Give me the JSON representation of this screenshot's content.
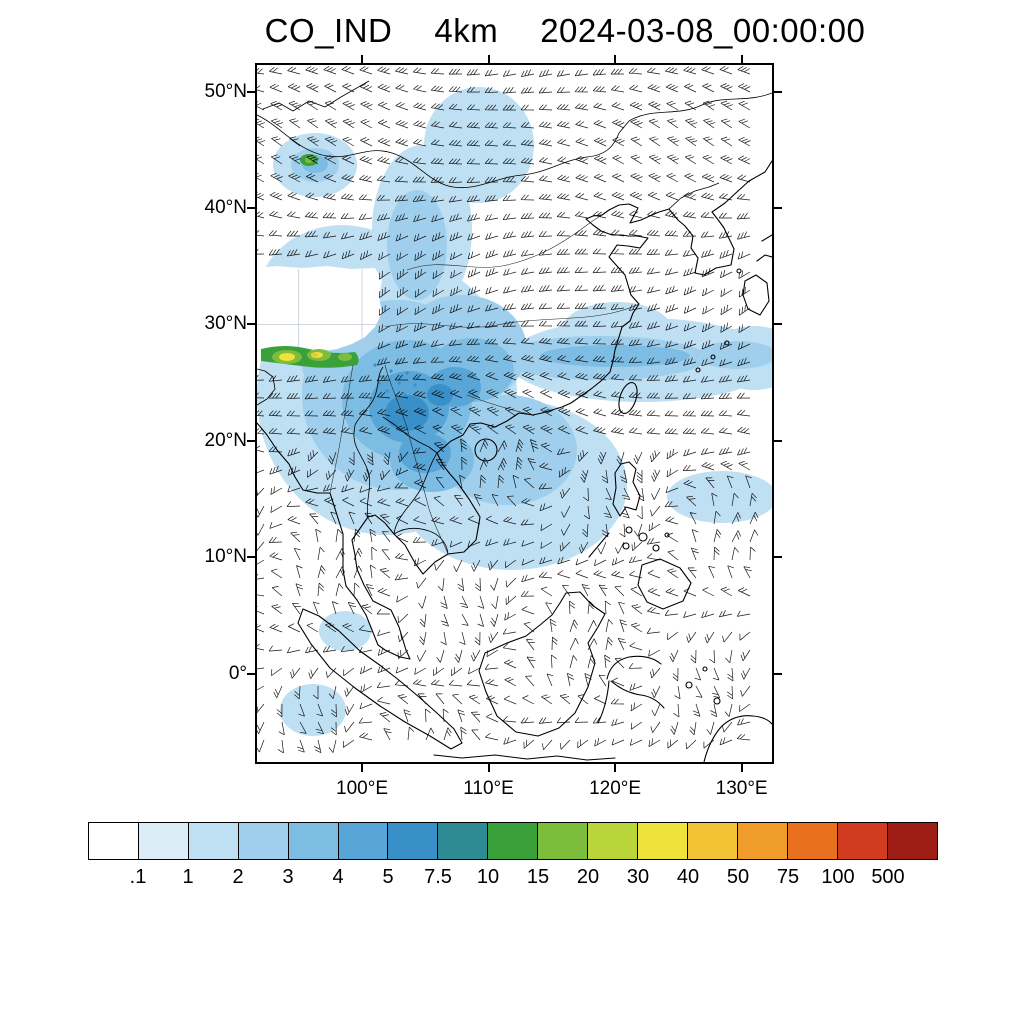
{
  "title": {
    "species": "CO_IND",
    "resolution": "4km",
    "datetime": "2024-03-08_00:00:00"
  },
  "map": {
    "lon_range": [
      91.7,
      132.4
    ],
    "lat_range": [
      -7.6,
      52.3
    ],
    "x_axis": {
      "values": [
        100,
        110,
        120,
        130
      ],
      "labels": [
        "100°E",
        "110°E",
        "120°E",
        "130°E"
      ]
    },
    "y_axis": {
      "values": [
        50,
        40,
        30,
        20,
        10,
        0
      ],
      "labels": [
        "50°N",
        "40°N",
        "30°N",
        "20°N",
        "10°N",
        "0°"
      ]
    }
  },
  "colorbar": {
    "labels": [
      ".1",
      "1",
      "2",
      "3",
      "4",
      "5",
      "7.5",
      "10",
      "15",
      "20",
      "30",
      "40",
      "50",
      "75",
      "100",
      "500"
    ],
    "colors": [
      "#FFFFFF",
      "#DCEDF8",
      "#BFDFF3",
      "#9FCFEC",
      "#7DBCE3",
      "#58A5D7",
      "#3990C8",
      "#2E8B94",
      "#3AA03A",
      "#7CBD3C",
      "#B9D53A",
      "#EEE33B",
      "#F2C335",
      "#F09C2B",
      "#E9701F",
      "#D13C20",
      "#9E1D15"
    ],
    "border_color": "#000000"
  },
  "chart_data": {
    "type": "heatmap",
    "title": "CO_IND 4km 2024-03-08_00:00:00",
    "variable": "CO_IND",
    "grid_resolution": "4km",
    "valid_time": "2024-03-08_00:00:00",
    "xlim": [
      91.7,
      132.4
    ],
    "ylim": [
      -7.6,
      52.3
    ],
    "x_ticks": [
      "100°E",
      "110°E",
      "120°E",
      "130°E"
    ],
    "y_ticks": [
      "50°N",
      "40°N",
      "30°N",
      "20°N",
      "10°N",
      "0°"
    ],
    "colorbar_levels": [
      0.1,
      1,
      2,
      3,
      4,
      5,
      7.5,
      10,
      15,
      20,
      30,
      40,
      50,
      75,
      100,
      500
    ],
    "colorbar_colors": [
      "#FFFFFF",
      "#DCEDF8",
      "#BFDFF3",
      "#9FCFEC",
      "#7DBCE3",
      "#58A5D7",
      "#3990C8",
      "#2E8B94",
      "#3AA03A",
      "#7CBD3C",
      "#B9D53A",
      "#EEE33B",
      "#F2C335",
      "#F09C2B",
      "#E9701F",
      "#D13C20",
      "#9E1D15"
    ],
    "overlays": [
      "wind barbs",
      "coastlines",
      "national borders",
      "rivers"
    ],
    "features": [
      {
        "name": "himalaya-foothill-hotspot",
        "lon": [
          92,
          100
        ],
        "lat": [
          26,
          28
        ],
        "peak_level": "20-40"
      },
      {
        "name": "northwest-china-hotspot",
        "lon": [
          95,
          98.5
        ],
        "lat": [
          43.5,
          45.5
        ],
        "peak_level": "10-20"
      },
      {
        "name": "indochina-south-china-plume",
        "lon": [
          98,
          112
        ],
        "lat": [
          15,
          28
        ],
        "peak_level": "3-7.5"
      },
      {
        "name": "westerly-outflow-band",
        "lon": [
          110,
          132.4
        ],
        "lat": [
          22,
          28
        ],
        "peak_level": "2-3"
      },
      {
        "name": "south-china-sea-wash",
        "lon": [
          105,
          122
        ],
        "lat": [
          5,
          18
        ],
        "peak_level": "1-2"
      },
      {
        "name": "west-sumatra-patch",
        "lon": [
          92,
          97
        ],
        "lat": [
          -5,
          0
        ],
        "peak_level": "1-2"
      },
      {
        "name": "tibetan-plateau-mask",
        "lon": [
          91.7,
          101.5
        ],
        "lat": [
          27.5,
          35
        ],
        "note": "white (masked high terrain)"
      }
    ]
  }
}
